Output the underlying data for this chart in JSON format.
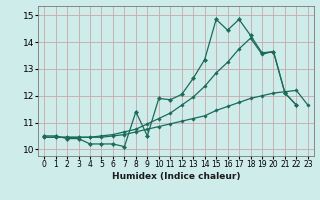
{
  "xlabel": "Humidex (Indice chaleur)",
  "xlim": [
    -0.5,
    23.5
  ],
  "ylim": [
    9.75,
    15.35
  ],
  "yticks": [
    10,
    11,
    12,
    13,
    14,
    15
  ],
  "xticks": [
    0,
    1,
    2,
    3,
    4,
    5,
    6,
    7,
    8,
    9,
    10,
    11,
    12,
    13,
    14,
    15,
    16,
    17,
    18,
    19,
    20,
    21,
    22,
    23
  ],
  "bg_color": "#ceecea",
  "grid_color": "#c8a8a8",
  "line_color": "#1a6b5a",
  "line1_x": [
    0,
    1,
    2,
    3,
    4,
    5,
    6,
    7,
    8,
    9,
    10,
    11,
    12,
    13,
    14,
    15,
    16,
    17,
    18,
    19,
    20,
    21,
    22
  ],
  "line1_y": [
    10.5,
    10.5,
    10.4,
    10.4,
    10.2,
    10.2,
    10.2,
    10.1,
    11.4,
    10.5,
    11.9,
    11.85,
    12.05,
    12.65,
    13.35,
    14.85,
    14.45,
    14.85,
    14.25,
    13.6,
    13.65,
    12.1,
    11.65
  ],
  "line2_x": [
    0,
    1,
    2,
    3,
    4,
    5,
    6,
    7,
    8,
    9,
    10,
    11,
    12,
    13,
    14,
    15,
    16,
    17,
    18,
    19,
    20,
    21,
    22,
    23
  ],
  "line2_y": [
    10.45,
    10.45,
    10.45,
    10.45,
    10.45,
    10.45,
    10.5,
    10.55,
    10.65,
    10.75,
    10.85,
    10.95,
    11.05,
    11.15,
    11.25,
    11.45,
    11.6,
    11.75,
    11.9,
    12.0,
    12.1,
    12.15,
    12.2,
    11.65
  ],
  "line3_x": [
    0,
    1,
    2,
    3,
    4,
    5,
    6,
    7,
    8,
    9,
    10,
    11,
    12,
    13,
    14,
    15,
    16,
    17,
    18,
    19,
    20,
    21,
    22
  ],
  "line3_y": [
    10.45,
    10.45,
    10.45,
    10.45,
    10.45,
    10.5,
    10.55,
    10.65,
    10.75,
    10.95,
    11.15,
    11.35,
    11.65,
    11.95,
    12.35,
    12.85,
    13.25,
    13.75,
    14.15,
    13.55,
    13.65,
    12.1,
    11.65
  ]
}
